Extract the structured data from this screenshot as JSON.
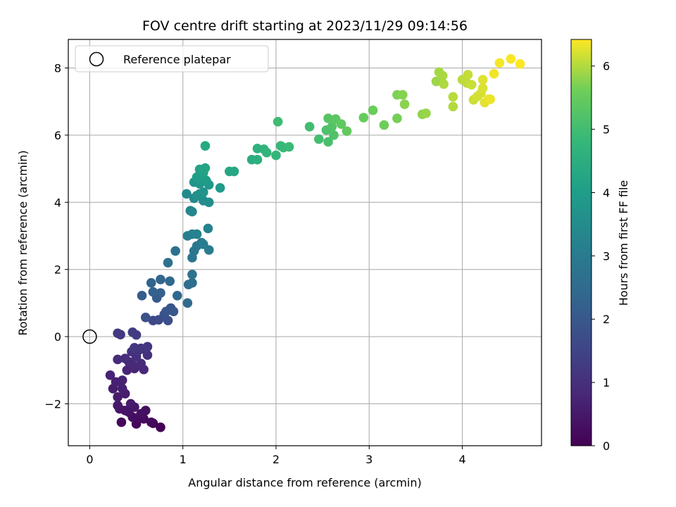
{
  "chart_data": {
    "type": "scatter",
    "title": "FOV centre drift starting at 2023/11/29 09:14:56",
    "xlabel": "Angular distance from reference (arcmin)",
    "ylabel": "Rotation from reference (arcmin)",
    "colorbar_label": "Hours from first FF file",
    "xlim": [
      -0.23,
      4.85
    ],
    "ylim": [
      -3.25,
      8.85
    ],
    "xticks": [
      0,
      1,
      2,
      3,
      4
    ],
    "yticks": [
      -2,
      0,
      2,
      4,
      6,
      8
    ],
    "ytick_labels": [
      "−2",
      "0",
      "2",
      "4",
      "6",
      "8"
    ],
    "colorbar_range": [
      0,
      6.42
    ],
    "colorbar_ticks": [
      0,
      1,
      2,
      3,
      4,
      5,
      6
    ],
    "colormap": "viridis",
    "grid": true,
    "legend": {
      "placement": "top-left",
      "entries": [
        "Reference platepar"
      ]
    },
    "reference_point": {
      "x": 0,
      "y": 0
    },
    "points": [
      [
        0.76,
        -2.7,
        0.03
      ],
      [
        0.68,
        -2.58,
        0.07
      ],
      [
        0.5,
        -2.6,
        0.1
      ],
      [
        0.34,
        -2.55,
        0.13
      ],
      [
        0.66,
        -2.55,
        0.16
      ],
      [
        0.58,
        -2.45,
        0.19
      ],
      [
        0.52,
        -2.42,
        0.22
      ],
      [
        0.46,
        -2.4,
        0.25
      ],
      [
        0.6,
        -2.2,
        0.28
      ],
      [
        0.55,
        -2.3,
        0.31
      ],
      [
        0.42,
        -2.25,
        0.34
      ],
      [
        0.38,
        -2.2,
        0.37
      ],
      [
        0.32,
        -2.15,
        0.4
      ],
      [
        0.48,
        -2.1,
        0.44
      ],
      [
        0.3,
        -2.05,
        0.47
      ],
      [
        0.44,
        -2.0,
        0.5
      ],
      [
        0.3,
        -1.8,
        0.53
      ],
      [
        0.38,
        -1.7,
        0.56
      ],
      [
        0.25,
        -1.55,
        0.59
      ],
      [
        0.35,
        -1.55,
        0.62
      ],
      [
        0.28,
        -1.35,
        0.65
      ],
      [
        0.35,
        -1.3,
        0.68
      ],
      [
        0.22,
        -1.15,
        0.71
      ],
      [
        0.4,
        -1.0,
        0.74
      ],
      [
        0.48,
        -0.95,
        0.77
      ],
      [
        0.58,
        -0.98,
        0.8
      ],
      [
        0.46,
        -0.85,
        0.83
      ],
      [
        0.42,
        -0.75,
        0.86
      ],
      [
        0.55,
        -0.8,
        0.89
      ],
      [
        0.3,
        -0.68,
        0.92
      ],
      [
        0.38,
        -0.65,
        0.95
      ],
      [
        0.5,
        -0.6,
        0.98
      ],
      [
        0.62,
        -0.55,
        1.01
      ],
      [
        0.45,
        -0.45,
        1.04
      ],
      [
        0.52,
        -0.42,
        1.07
      ],
      [
        0.6,
        -0.4,
        1.1
      ],
      [
        0.55,
        -0.35,
        1.13
      ],
      [
        0.62,
        -0.3,
        1.16
      ],
      [
        0.48,
        -0.33,
        1.19
      ],
      [
        0.3,
        0.1,
        1.22
      ],
      [
        0.33,
        0.06,
        1.25
      ],
      [
        0.46,
        0.13,
        1.28
      ],
      [
        0.5,
        0.05,
        1.31
      ],
      [
        0.68,
        0.48,
        1.55
      ],
      [
        0.74,
        0.5,
        1.65
      ],
      [
        0.84,
        0.48,
        1.75
      ],
      [
        0.6,
        0.57,
        1.8
      ],
      [
        0.8,
        0.66,
        1.85
      ],
      [
        0.87,
        0.85,
        1.9
      ],
      [
        0.82,
        0.75,
        1.95
      ],
      [
        0.9,
        0.75,
        2.0
      ],
      [
        0.72,
        1.15,
        2.05
      ],
      [
        0.72,
        1.2,
        2.1
      ],
      [
        0.56,
        1.22,
        2.15
      ],
      [
        0.76,
        1.3,
        2.2
      ],
      [
        0.68,
        1.33,
        2.25
      ],
      [
        0.66,
        1.6,
        2.3
      ],
      [
        0.76,
        1.7,
        2.35
      ],
      [
        0.86,
        1.65,
        2.4
      ],
      [
        0.94,
        1.22,
        2.45
      ],
      [
        1.05,
        1.0,
        2.5
      ],
      [
        1.06,
        1.55,
        2.55
      ],
      [
        1.1,
        1.6,
        2.6
      ],
      [
        0.84,
        2.2,
        2.65
      ],
      [
        0.92,
        2.55,
        2.7
      ],
      [
        1.1,
        1.85,
        2.75
      ],
      [
        1.1,
        2.35,
        2.8
      ],
      [
        1.12,
        2.55,
        2.85
      ],
      [
        1.15,
        2.7,
        2.9
      ],
      [
        1.2,
        2.8,
        2.95
      ],
      [
        1.28,
        2.58,
        3.0
      ],
      [
        1.22,
        2.75,
        3.05
      ],
      [
        1.05,
        3.0,
        3.1
      ],
      [
        1.1,
        3.05,
        3.15
      ],
      [
        1.15,
        3.05,
        3.2
      ],
      [
        1.27,
        3.22,
        3.25
      ],
      [
        1.08,
        3.75,
        3.3
      ],
      [
        1.1,
        3.72,
        3.35
      ],
      [
        1.12,
        4.12,
        3.4
      ],
      [
        1.04,
        4.25,
        3.45
      ],
      [
        1.22,
        4.05,
        3.5
      ],
      [
        1.28,
        4.0,
        3.55
      ],
      [
        1.18,
        4.25,
        3.6
      ],
      [
        1.15,
        4.2,
        3.65
      ],
      [
        1.22,
        4.3,
        3.7
      ],
      [
        1.12,
        4.6,
        3.75
      ],
      [
        1.18,
        4.55,
        3.8
      ],
      [
        1.28,
        4.52,
        3.85
      ],
      [
        1.4,
        4.43,
        3.9
      ],
      [
        1.25,
        4.65,
        3.95
      ],
      [
        1.15,
        4.75,
        4.0
      ],
      [
        1.18,
        4.82,
        4.05
      ],
      [
        1.22,
        4.88,
        4.1
      ],
      [
        1.18,
        4.98,
        4.15
      ],
      [
        1.24,
        5.02,
        4.2
      ],
      [
        1.5,
        4.92,
        4.25
      ],
      [
        1.55,
        4.92,
        4.3
      ],
      [
        1.24,
        5.68,
        4.35
      ],
      [
        1.74,
        5.27,
        4.5
      ],
      [
        1.8,
        5.27,
        4.55
      ],
      [
        1.8,
        5.6,
        4.6
      ],
      [
        1.87,
        5.58,
        4.65
      ],
      [
        1.9,
        5.48,
        4.7
      ],
      [
        2.0,
        5.4,
        4.75
      ],
      [
        2.05,
        5.68,
        4.8
      ],
      [
        2.08,
        5.63,
        4.85
      ],
      [
        2.14,
        5.65,
        4.9
      ],
      [
        2.02,
        6.4,
        4.95
      ],
      [
        2.36,
        6.25,
        5.0
      ],
      [
        2.46,
        5.88,
        5.05
      ],
      [
        2.56,
        5.8,
        5.1
      ],
      [
        2.54,
        6.15,
        5.15
      ],
      [
        2.62,
        6.0,
        5.2
      ],
      [
        2.6,
        6.25,
        5.25
      ],
      [
        2.56,
        6.5,
        5.3
      ],
      [
        2.64,
        6.48,
        5.35
      ],
      [
        2.7,
        6.33,
        5.4
      ],
      [
        2.76,
        6.12,
        5.45
      ],
      [
        2.94,
        6.52,
        5.5
      ],
      [
        3.04,
        6.74,
        5.55
      ],
      [
        3.16,
        6.3,
        5.6
      ],
      [
        3.3,
        6.5,
        5.65
      ],
      [
        3.3,
        7.2,
        5.7
      ],
      [
        3.36,
        7.2,
        5.75
      ],
      [
        3.38,
        6.92,
        5.78
      ],
      [
        3.57,
        6.62,
        5.82
      ],
      [
        3.61,
        6.65,
        5.85
      ],
      [
        3.72,
        7.6,
        5.88
      ],
      [
        3.75,
        7.88,
        5.92
      ],
      [
        3.79,
        7.77,
        5.95
      ],
      [
        3.8,
        7.52,
        5.98
      ],
      [
        3.9,
        6.85,
        6.0
      ],
      [
        3.9,
        7.14,
        6.03
      ],
      [
        4.0,
        7.65,
        6.05
      ],
      [
        4.05,
        7.55,
        6.08
      ],
      [
        4.06,
        7.8,
        6.1
      ],
      [
        4.1,
        7.5,
        6.13
      ],
      [
        4.12,
        7.05,
        6.15
      ],
      [
        4.16,
        7.15,
        6.18
      ],
      [
        4.2,
        7.25,
        6.2
      ],
      [
        4.22,
        7.4,
        6.22
      ],
      [
        4.22,
        7.65,
        6.25
      ],
      [
        4.24,
        6.97,
        6.27
      ],
      [
        4.28,
        7.07,
        6.3
      ],
      [
        4.3,
        7.07,
        6.32
      ],
      [
        4.34,
        7.83,
        6.35
      ],
      [
        4.4,
        8.15,
        6.38
      ],
      [
        4.52,
        8.27,
        6.4
      ],
      [
        4.62,
        8.12,
        6.42
      ]
    ]
  }
}
